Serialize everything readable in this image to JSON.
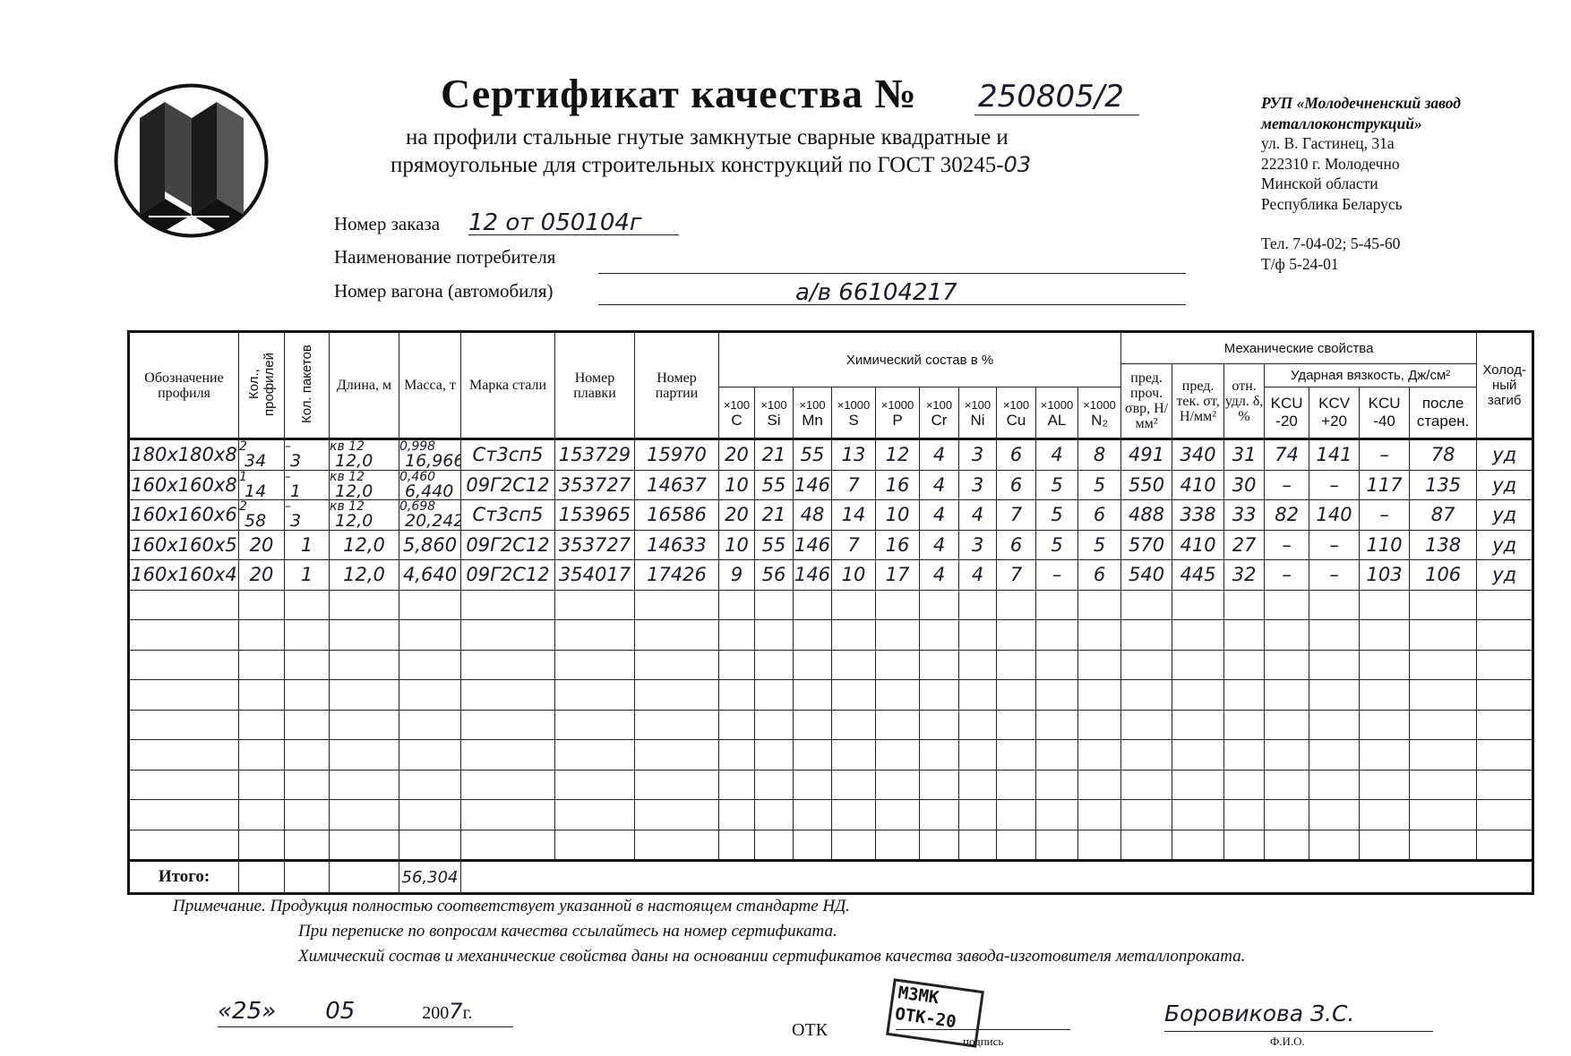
{
  "header": {
    "title": "Сертификат качества №",
    "certificate_number": "250805/2",
    "subtitle_line1": "на профили стальные гнутые замкнутые сварные квадратные и",
    "subtitle_line2": "прямоугольные для строительных  конструкций по ГОСТ 30245-",
    "gost_year": "03"
  },
  "company": {
    "name_line1": "РУП «Молодечненский завод",
    "name_line2": "металлоконструкций»",
    "street": "ул. В. Гастинец, 31а",
    "city": "222310 г. Молодечно",
    "region": "Минской области",
    "country": "Республика Беларусь",
    "phone": "Тел. 7-04-02; 5-45-60",
    "fax": "Т/ф  5-24-01"
  },
  "fields": {
    "order_label": "Номер заказа",
    "order_value": "12 от 050104г",
    "consumer_label": "Наименование потребителя",
    "consumer_value": "",
    "wagon_label": "Номер вагона (автомобиля)",
    "wagon_value": "а/в 66104217"
  },
  "table": {
    "headers": {
      "profile": "Обозначение профиля",
      "count_profiles": "Кол., профилей",
      "count_packets": "Кол. пакетов",
      "length": "Длина, м",
      "mass": "Масса, т",
      "steel": "Марка стали",
      "heat": "Номер плавки",
      "batch": "Номер партии",
      "chemical": "Химический состав в %",
      "mechanical": "Механические свойства",
      "tensile": "пред. проч. σвр, Н/мм²",
      "yield": "пред. тек. σт, Н/мм²",
      "elongation": "отн. удл. δ, %",
      "impact": "Ударная вязкость, Дж/см²",
      "cold_bend": "Холод-ный загиб"
    },
    "chem_columns": [
      {
        "mult": "×100",
        "el": "C"
      },
      {
        "mult": "×100",
        "el": "Si"
      },
      {
        "mult": "×100",
        "el": "Mn"
      },
      {
        "mult": "×1000",
        "el": "S"
      },
      {
        "mult": "×1000",
        "el": "P"
      },
      {
        "mult": "×100",
        "el": "Cr"
      },
      {
        "mult": "×100",
        "el": "Ni"
      },
      {
        "mult": "×100",
        "el": "Cu"
      },
      {
        "mult": "×1000",
        "el": "AL"
      },
      {
        "mult": "×1000",
        "el": "N₂"
      }
    ],
    "impact_columns": [
      {
        "top": "KCU",
        "bottom": "-20"
      },
      {
        "top": "KCV",
        "bottom": "+20"
      },
      {
        "top": "KCU",
        "bottom": "-40"
      },
      {
        "top": "после",
        "bottom": "старен."
      }
    ],
    "rows": [
      {
        "profile": "180x180x8",
        "count_profiles": [
          "2",
          "34"
        ],
        "count_packets": [
          "–",
          "3"
        ],
        "length": [
          "кв 12",
          "12,0"
        ],
        "mass": [
          "0,998",
          "16,966"
        ],
        "steel": "Ст3сп5",
        "heat": "153729",
        "batch": "15970",
        "chem": [
          "20",
          "21",
          "55",
          "13",
          "12",
          "4",
          "3",
          "6",
          "4",
          "8"
        ],
        "tensile": "491",
        "yield": "340",
        "elongation": "31",
        "impact": [
          "74",
          "141",
          "–",
          "78"
        ],
        "bend": "уд"
      },
      {
        "profile": "160x160x8",
        "count_profiles": [
          "1",
          "14"
        ],
        "count_packets": [
          "–",
          "1"
        ],
        "length": [
          "кв 12",
          "12,0"
        ],
        "mass": [
          "0,460",
          "6,440"
        ],
        "steel": "09Г2С12",
        "heat": "353727",
        "batch": "14637",
        "chem": [
          "10",
          "55",
          "146",
          "7",
          "16",
          "4",
          "3",
          "6",
          "5",
          "5"
        ],
        "tensile": "550",
        "yield": "410",
        "elongation": "30",
        "impact": [
          "–",
          "–",
          "117",
          "135"
        ],
        "bend": "уд"
      },
      {
        "profile": "160x160x6",
        "count_profiles": [
          "2",
          "58"
        ],
        "count_packets": [
          "–",
          "3"
        ],
        "length": [
          "кв 12",
          "12,0"
        ],
        "mass": [
          "0,698",
          "20,242"
        ],
        "steel": "Ст3сп5",
        "heat": "153965",
        "batch": "16586",
        "chem": [
          "20",
          "21",
          "48",
          "14",
          "10",
          "4",
          "4",
          "7",
          "5",
          "6"
        ],
        "tensile": "488",
        "yield": "338",
        "elongation": "33",
        "impact": [
          "82",
          "140",
          "–",
          "87"
        ],
        "bend": "уд"
      },
      {
        "profile": "160x160x5",
        "count_profiles": [
          "20"
        ],
        "count_packets": [
          "1"
        ],
        "length": [
          "12,0"
        ],
        "mass": [
          "5,860"
        ],
        "steel": "09Г2С12",
        "heat": "353727",
        "batch": "14633",
        "chem": [
          "10",
          "55",
          "146",
          "7",
          "16",
          "4",
          "3",
          "6",
          "5",
          "5"
        ],
        "tensile": "570",
        "yield": "410",
        "elongation": "27",
        "impact": [
          "–",
          "–",
          "110",
          "138"
        ],
        "bend": "уд"
      },
      {
        "profile": "160x160x4",
        "count_profiles": [
          "20"
        ],
        "count_packets": [
          "1"
        ],
        "length": [
          "12,0"
        ],
        "mass": [
          "4,640"
        ],
        "steel": "09Г2С12",
        "heat": "354017",
        "batch": "17426",
        "chem": [
          "9",
          "56",
          "146",
          "10",
          "17",
          "4",
          "4",
          "7",
          "–",
          "6"
        ],
        "tensile": "540",
        "yield": "445",
        "elongation": "32",
        "impact": [
          "–",
          "–",
          "103",
          "106"
        ],
        "bend": "уд"
      }
    ],
    "total_label": "Итого:",
    "total_mass": "56,304"
  },
  "notes": {
    "line1": "Примечание. Продукция полностью соответствует указанной в настоящем стандарте НД.",
    "line2": "При переписке по вопросам качества ссылайтесь на номер сертификата.",
    "line3": "Химический состав и механические свойства даны на основании сертификатов качества завода-изготовителя металлопроката."
  },
  "footer": {
    "date_day": "«25»",
    "date_month": "05",
    "date_year_prefix": "200",
    "date_year_digit": "7",
    "date_year_suffix": "г.",
    "otk_label": "ОТК",
    "signature_caption": "подпись",
    "name_caption": "Ф.И.О.",
    "name_value": "Боровикова З.С.",
    "stamp_line1": "МЗМК",
    "stamp_line2": "ОТК-20"
  }
}
